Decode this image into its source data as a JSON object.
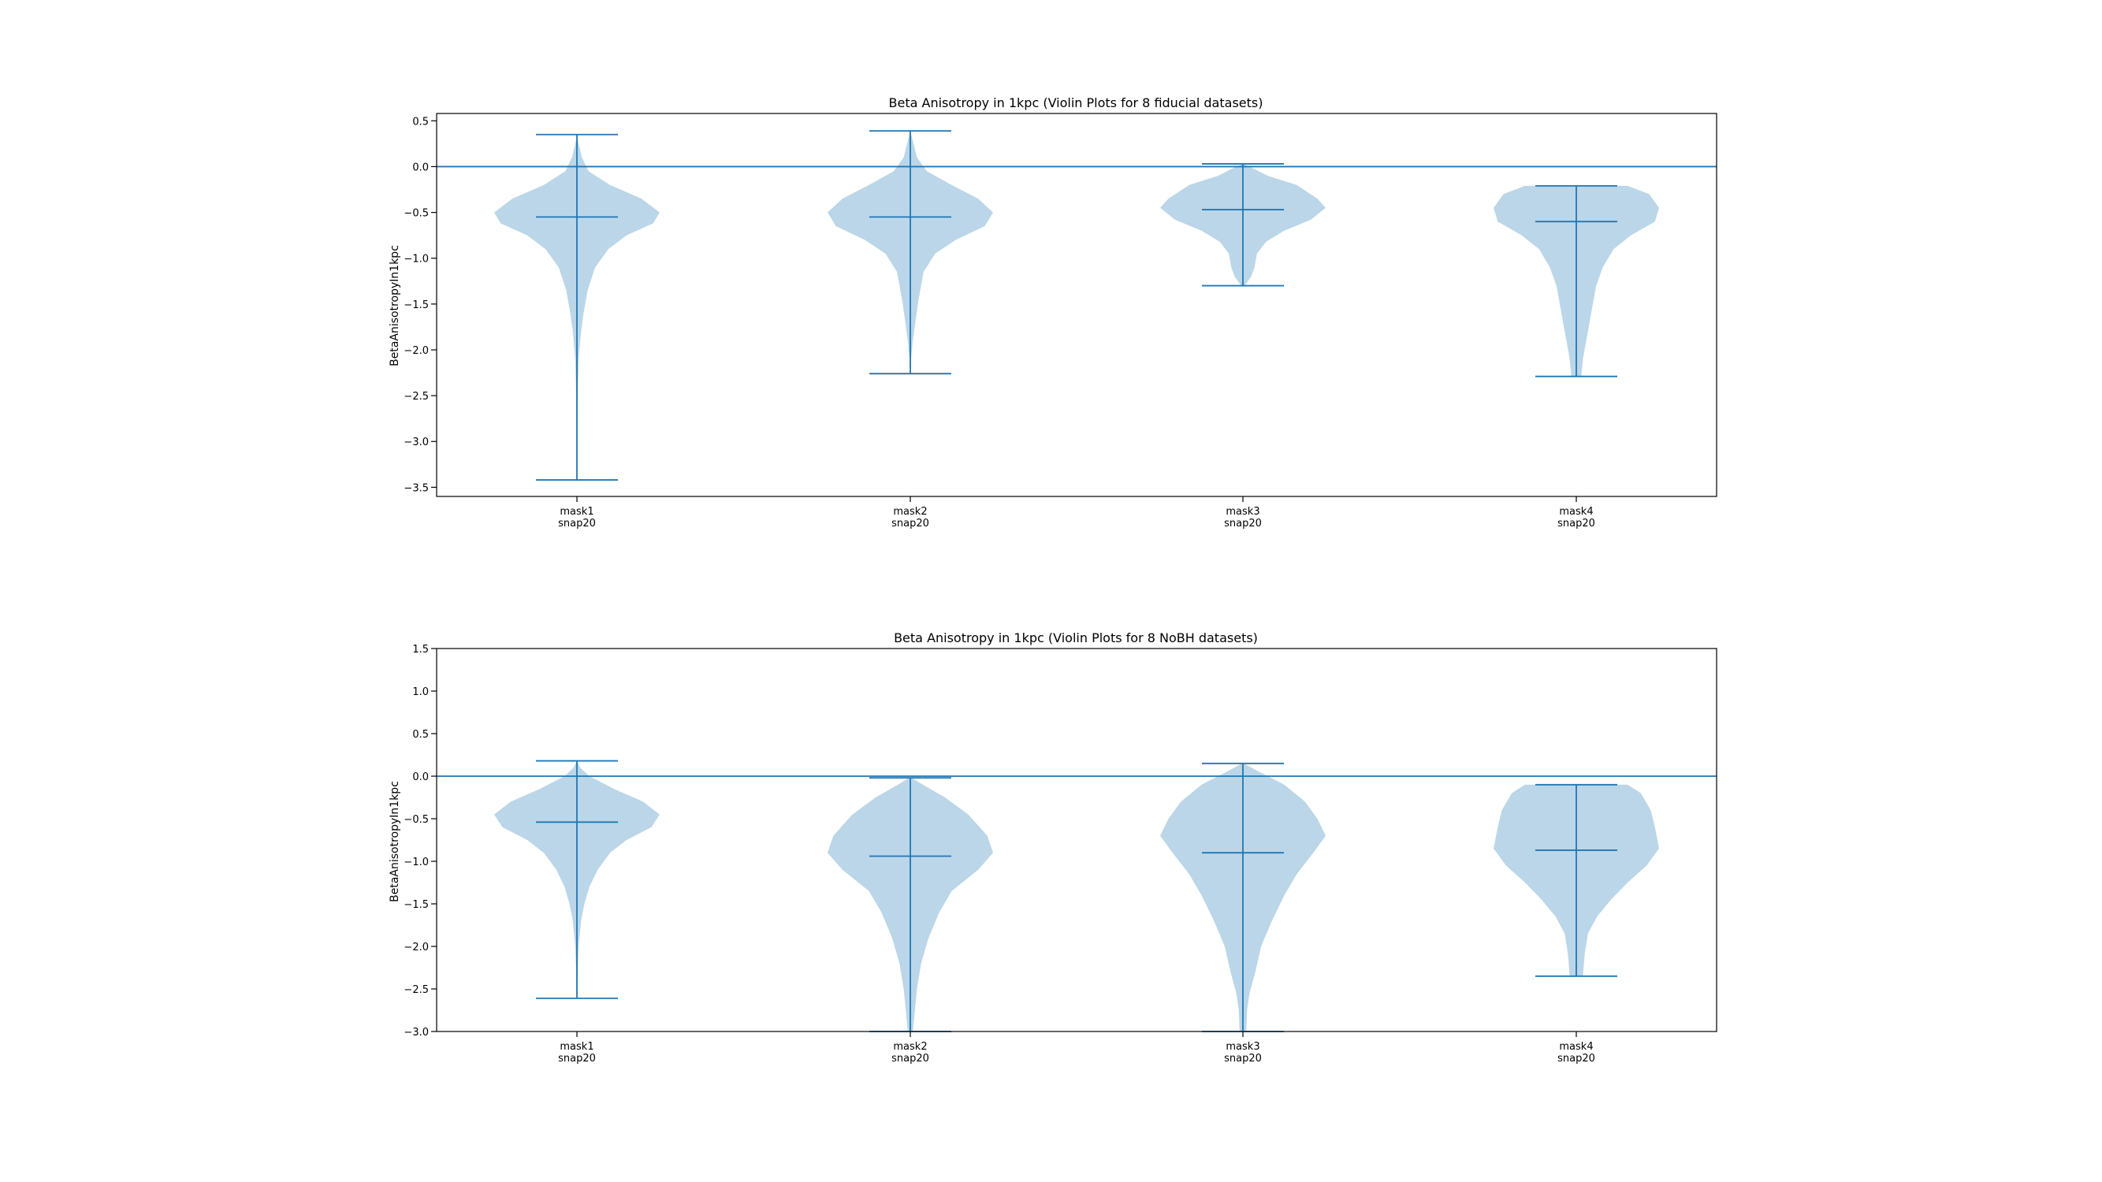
{
  "colors": {
    "violin_fill": "#1f77b4",
    "line": "#1f77b4",
    "axes": "#000000",
    "background": "#ffffff"
  },
  "chart_data": [
    {
      "type": "violin",
      "title": "Beta Anisotropy in 1kpc (Violin Plots for 8 fiducial datasets)",
      "xlabel": "",
      "ylabel": "BetaAnisotropyIn1kpc",
      "ylim": [
        -3.6,
        0.58
      ],
      "yticks": [
        0.5,
        0.0,
        -0.5,
        -1.0,
        -1.5,
        -2.0,
        -2.5,
        -3.0,
        -3.5
      ],
      "ytick_labels": [
        "0.5",
        "0.0",
        "−0.5",
        "−1.0",
        "−1.5",
        "−2.0",
        "−2.5",
        "−3.0",
        "−3.5"
      ],
      "hline": 0.0,
      "grid": false,
      "categories": [
        {
          "line1": "mask1",
          "line2": "snap20"
        },
        {
          "line1": "mask2",
          "line2": "snap20"
        },
        {
          "line1": "mask3",
          "line2": "snap20"
        },
        {
          "line1": "mask4",
          "line2": "snap20"
        }
      ],
      "violins": [
        {
          "max": 0.35,
          "median": -0.55,
          "min": -3.42,
          "profile": [
            [
              0.35,
              0
            ],
            [
              0.25,
              0.02
            ],
            [
              0.1,
              0.06
            ],
            [
              -0.05,
              0.14
            ],
            [
              -0.2,
              0.4
            ],
            [
              -0.35,
              0.78
            ],
            [
              -0.5,
              1.0
            ],
            [
              -0.62,
              0.92
            ],
            [
              -0.75,
              0.6
            ],
            [
              -0.9,
              0.38
            ],
            [
              -1.1,
              0.22
            ],
            [
              -1.35,
              0.13
            ],
            [
              -1.6,
              0.08
            ],
            [
              -1.8,
              0.05
            ],
            [
              -2.1,
              0.02
            ],
            [
              -2.5,
              0.01
            ],
            [
              -3.0,
              0.005
            ],
            [
              -3.42,
              0.003
            ]
          ]
        },
        {
          "max": 0.39,
          "median": -0.55,
          "min": -2.26,
          "profile": [
            [
              0.39,
              0
            ],
            [
              0.28,
              0.03
            ],
            [
              0.1,
              0.08
            ],
            [
              -0.05,
              0.2
            ],
            [
              -0.2,
              0.5
            ],
            [
              -0.35,
              0.82
            ],
            [
              -0.5,
              1.0
            ],
            [
              -0.65,
              0.9
            ],
            [
              -0.8,
              0.55
            ],
            [
              -0.95,
              0.3
            ],
            [
              -1.15,
              0.16
            ],
            [
              -1.45,
              0.1
            ],
            [
              -1.7,
              0.06
            ],
            [
              -1.9,
              0.03
            ],
            [
              -2.1,
              0.01
            ],
            [
              -2.26,
              0.005
            ]
          ]
        },
        {
          "max": 0.03,
          "median": -0.47,
          "min": -1.3,
          "profile": [
            [
              0.03,
              0
            ],
            [
              0.0,
              0.08
            ],
            [
              -0.1,
              0.3
            ],
            [
              -0.2,
              0.65
            ],
            [
              -0.35,
              0.9
            ],
            [
              -0.45,
              1.0
            ],
            [
              -0.58,
              0.82
            ],
            [
              -0.7,
              0.5
            ],
            [
              -0.82,
              0.28
            ],
            [
              -0.95,
              0.17
            ],
            [
              -1.1,
              0.14
            ],
            [
              -1.2,
              0.1
            ],
            [
              -1.3,
              0.02
            ]
          ]
        },
        {
          "max": -0.21,
          "median": -0.6,
          "min": -2.29,
          "profile": [
            [
              -0.21,
              0.62
            ],
            [
              -0.3,
              0.88
            ],
            [
              -0.45,
              1.0
            ],
            [
              -0.6,
              0.95
            ],
            [
              -0.75,
              0.66
            ],
            [
              -0.9,
              0.45
            ],
            [
              -1.1,
              0.32
            ],
            [
              -1.3,
              0.24
            ],
            [
              -1.5,
              0.2
            ],
            [
              -1.7,
              0.16
            ],
            [
              -1.9,
              0.12
            ],
            [
              -2.1,
              0.08
            ],
            [
              -2.29,
              0.06
            ]
          ]
        }
      ]
    },
    {
      "type": "violin",
      "title": "Beta Anisotropy in 1kpc (Violin Plots for 8 NoBH datasets)",
      "xlabel": "",
      "ylabel": "BetaAnisotropyIn1kpc",
      "ylim": [
        -3.0,
        1.5
      ],
      "yticks": [
        1.5,
        1.0,
        0.5,
        0.0,
        -0.5,
        -1.0,
        -1.5,
        -2.0,
        -2.5,
        -3.0
      ],
      "ytick_labels": [
        "1.5",
        "1.0",
        "0.5",
        "0.0",
        "−0.5",
        "−1.0",
        "−1.5",
        "−2.0",
        "−2.5",
        "−3.0"
      ],
      "hline": 0.0,
      "grid": false,
      "categories": [
        {
          "line1": "mask1",
          "line2": "snap20"
        },
        {
          "line1": "mask2",
          "line2": "snap20"
        },
        {
          "line1": "mask3",
          "line2": "snap20"
        },
        {
          "line1": "mask4",
          "line2": "snap20"
        }
      ],
      "violins": [
        {
          "max": 0.18,
          "median": -0.54,
          "min": -2.61,
          "profile": [
            [
              0.18,
              0
            ],
            [
              0.1,
              0.04
            ],
            [
              0.0,
              0.15
            ],
            [
              -0.15,
              0.45
            ],
            [
              -0.3,
              0.8
            ],
            [
              -0.45,
              1.0
            ],
            [
              -0.6,
              0.9
            ],
            [
              -0.75,
              0.6
            ],
            [
              -0.9,
              0.4
            ],
            [
              -1.1,
              0.25
            ],
            [
              -1.3,
              0.15
            ],
            [
              -1.5,
              0.09
            ],
            [
              -1.7,
              0.05
            ],
            [
              -2.0,
              0.02
            ],
            [
              -2.3,
              0.01
            ],
            [
              -2.61,
              0.005
            ]
          ]
        },
        {
          "max": -0.02,
          "median": -0.94,
          "min": -3.0,
          "profile": [
            [
              -0.02,
              0.02
            ],
            [
              -0.1,
              0.15
            ],
            [
              -0.25,
              0.42
            ],
            [
              -0.45,
              0.7
            ],
            [
              -0.7,
              0.93
            ],
            [
              -0.9,
              1.0
            ],
            [
              -1.1,
              0.82
            ],
            [
              -1.35,
              0.5
            ],
            [
              -1.6,
              0.35
            ],
            [
              -1.9,
              0.22
            ],
            [
              -2.2,
              0.13
            ],
            [
              -2.5,
              0.08
            ],
            [
              -2.8,
              0.05
            ],
            [
              -3.0,
              0.03
            ]
          ]
        },
        {
          "max": 0.15,
          "median": -0.9,
          "min": -3.0,
          "profile": [
            [
              0.15,
              0.01
            ],
            [
              0.05,
              0.2
            ],
            [
              -0.1,
              0.5
            ],
            [
              -0.3,
              0.75
            ],
            [
              -0.5,
              0.9
            ],
            [
              -0.7,
              1.0
            ],
            [
              -0.9,
              0.85
            ],
            [
              -1.15,
              0.65
            ],
            [
              -1.4,
              0.5
            ],
            [
              -1.7,
              0.35
            ],
            [
              -2.0,
              0.22
            ],
            [
              -2.3,
              0.15
            ],
            [
              -2.55,
              0.08
            ],
            [
              -2.75,
              0.05
            ],
            [
              -3.0,
              0.04
            ]
          ]
        },
        {
          "max": -0.1,
          "median": -0.87,
          "min": -2.35,
          "profile": [
            [
              -0.1,
              0.62
            ],
            [
              -0.2,
              0.78
            ],
            [
              -0.4,
              0.9
            ],
            [
              -0.6,
              0.95
            ],
            [
              -0.85,
              1.0
            ],
            [
              -1.05,
              0.85
            ],
            [
              -1.25,
              0.62
            ],
            [
              -1.45,
              0.42
            ],
            [
              -1.65,
              0.25
            ],
            [
              -1.85,
              0.14
            ],
            [
              -2.1,
              0.1
            ],
            [
              -2.35,
              0.08
            ]
          ]
        }
      ]
    }
  ]
}
